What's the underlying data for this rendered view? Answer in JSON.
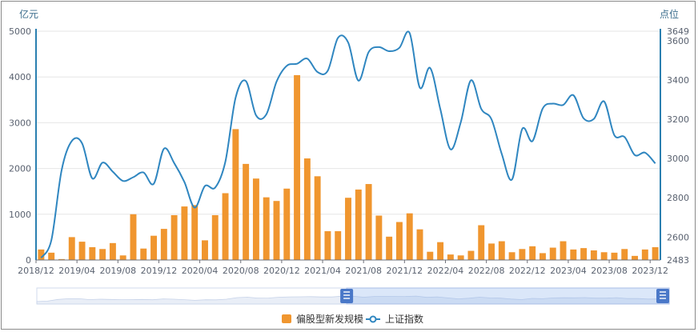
{
  "chart_data": {
    "type": "bar+line",
    "left_axis_unit": "亿元",
    "right_axis_unit": "点位",
    "left_axis": {
      "min": 0,
      "max": 5000,
      "ticks": [
        "0",
        "1000",
        "2000",
        "3000",
        "4000",
        "5000"
      ]
    },
    "right_axis": {
      "min": 2483,
      "max": 3649,
      "ticks": [
        "2483",
        "2600",
        "2800",
        "3000",
        "3200",
        "3400",
        "3600",
        "3649"
      ]
    },
    "x_tick_labels": [
      "2018/12",
      "2019/04",
      "2019/08",
      "2019/12",
      "2020/04",
      "2020/08",
      "2020/12",
      "2021/04",
      "2021/08",
      "2021/12",
      "2022/04",
      "2022/08",
      "2022/12",
      "2023/04",
      "2023/08",
      "2023/12"
    ],
    "categories": [
      "2018/12",
      "2019/01",
      "2019/02",
      "2019/03",
      "2019/04",
      "2019/05",
      "2019/06",
      "2019/07",
      "2019/08",
      "2019/09",
      "2019/10",
      "2019/11",
      "2019/12",
      "2020/01",
      "2020/02",
      "2020/03",
      "2020/04",
      "2020/05",
      "2020/06",
      "2020/07",
      "2020/08",
      "2020/09",
      "2020/10",
      "2020/11",
      "2020/12",
      "2021/01",
      "2021/02",
      "2021/03",
      "2021/04",
      "2021/05",
      "2021/06",
      "2021/07",
      "2021/08",
      "2021/09",
      "2021/10",
      "2021/11",
      "2021/12",
      "2022/01",
      "2022/02",
      "2022/03",
      "2022/04",
      "2022/05",
      "2022/06",
      "2022/07",
      "2022/08",
      "2022/09",
      "2022/10",
      "2022/11",
      "2022/12",
      "2023/01",
      "2023/02",
      "2023/03",
      "2023/04",
      "2023/05",
      "2023/06",
      "2023/07",
      "2023/08",
      "2023/09",
      "2023/10",
      "2023/11",
      "2023/12"
    ],
    "series": [
      {
        "name": "偏股型新发规模",
        "type": "bar",
        "axis": "left",
        "color": "#f0962f",
        "values": [
          230,
          160,
          20,
          500,
          400,
          280,
          240,
          370,
          100,
          1000,
          250,
          530,
          680,
          980,
          1170,
          1200,
          430,
          980,
          1460,
          2860,
          2100,
          1780,
          1370,
          1290,
          1560,
          4040,
          2220,
          1830,
          630,
          630,
          1360,
          1540,
          1660,
          970,
          510,
          830,
          1020,
          670,
          180,
          390,
          120,
          100,
          200,
          760,
          360,
          410,
          170,
          240,
          300,
          150,
          270,
          410,
          230,
          260,
          210,
          170,
          160,
          240,
          90,
          230,
          280
        ]
      },
      {
        "name": "上证指数",
        "type": "line",
        "axis": "right",
        "color": "#2f86c0",
        "values": [
          2494,
          2584,
          2941,
          3090,
          3078,
          2899,
          2979,
          2933,
          2886,
          2905,
          2929,
          2871,
          3050,
          2977,
          2880,
          2750,
          2860,
          2852,
          2985,
          3310,
          3395,
          3220,
          3225,
          3392,
          3473,
          3483,
          3509,
          3441,
          3447,
          3615,
          3591,
          3397,
          3543,
          3568,
          3547,
          3564,
          3640,
          3361,
          3462,
          3252,
          3047,
          3186,
          3399,
          3253,
          3200,
          3024,
          2893,
          3151,
          3089,
          3255,
          3280,
          3273,
          3323,
          3205,
          3202,
          3291,
          3119,
          3110,
          3018,
          3030,
          2975
        ]
      }
    ],
    "legend": {
      "placement": "bottom-center",
      "items": [
        "偏股型新发规模",
        "上证指数"
      ]
    },
    "grid": true,
    "data_zoom": {
      "start": 0.49,
      "end": 1.0
    }
  }
}
